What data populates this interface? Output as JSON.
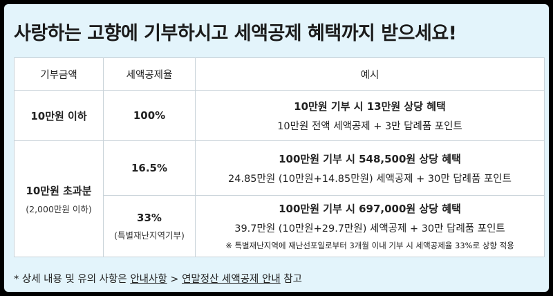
{
  "title": "사랑하는 고향에 기부하시고 세액공제 혜택까지 받으세요!",
  "table": {
    "headers": [
      "기부금액",
      "세액공제율",
      "예시"
    ],
    "row1": {
      "amount": "10만원 이하",
      "rate": "100%",
      "example_head": "10만원 기부 시 13만원 상당 혜택",
      "example_detail": "10만원 전액 세액공제 + 3만 답례품 포인트"
    },
    "group2": {
      "amount": "10만원 초과분",
      "amount_note": "(2,000만원 이하)",
      "rowA": {
        "rate": "16.5%",
        "example_head": "100만원 기부 시 548,500원 상당 혜택",
        "example_detail": "24.85만원 (10만원+14.85만원) 세액공제 + 30만 답례품 포인트"
      },
      "rowB": {
        "rate": "33%",
        "rate_note": "(특별재난지역기부)",
        "example_head": "100만원 기부 시 697,000원 상당 혜택",
        "example_detail": "39.7만원 (10만원+29.7만원) 세액공제 + 30만 답례품 포인트",
        "example_note": "※ 특별재난지역에 재난선포일로부터 3개월 이내 기부 시 세액공제율 33%로 상향 적용"
      }
    }
  },
  "footnote": {
    "prefix": "* 상세 내용 및 유의 사항은 ",
    "link1": "안내사항",
    "separator": " > ",
    "link2": "연말정산 세액공제 안내",
    "suffix": " 참고"
  }
}
